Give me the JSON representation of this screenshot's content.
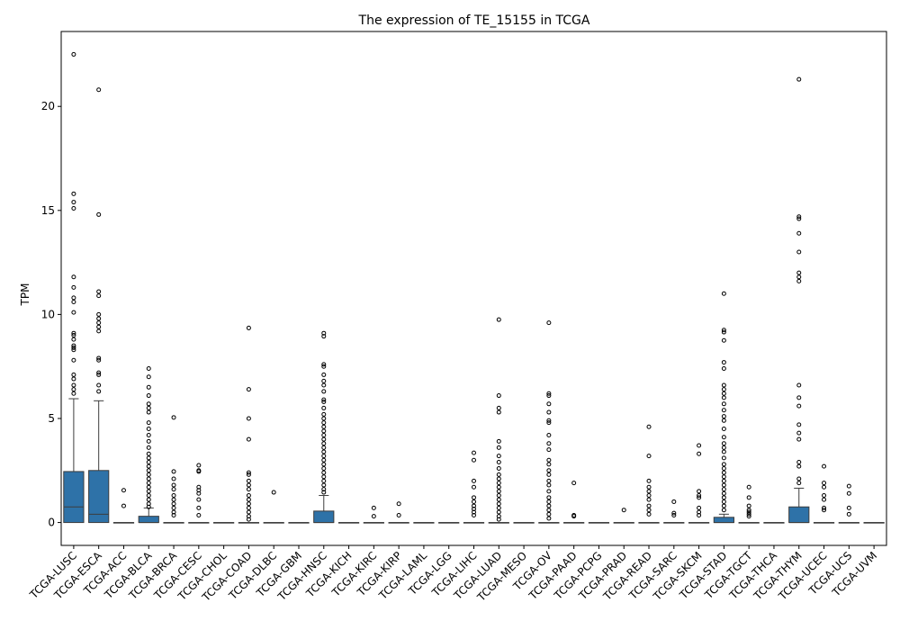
{
  "chart_data": {
    "type": "box",
    "title": "The expression of TE_15155 in TCGA",
    "xlabel": "",
    "ylabel": "TPM",
    "ylim": [
      -1.1,
      23.6
    ],
    "yticks": [
      0,
      5,
      10,
      15,
      20
    ],
    "box_color": "#2e72a8",
    "categories": [
      "TCGA-LUSC",
      "TCGA-ESCA",
      "TCGA-ACC",
      "TCGA-BLCA",
      "TCGA-BRCA",
      "TCGA-CESC",
      "TCGA-CHOL",
      "TCGA-COAD",
      "TCGA-DLBC",
      "TCGA-GBM",
      "TCGA-HNSC",
      "TCGA-KICH",
      "TCGA-KIRC",
      "TCGA-KIRP",
      "TCGA-LAML",
      "TCGA-LGG",
      "TCGA-LIHC",
      "TCGA-LUAD",
      "TCGA-MESO",
      "TCGA-OV",
      "TCGA-PAAD",
      "TCGA-PCPG",
      "TCGA-PRAD",
      "TCGA-READ",
      "TCGA-SARC",
      "TCGA-SKCM",
      "TCGA-STAD",
      "TCGA-TGCT",
      "TCGA-THCA",
      "TCGA-THYM",
      "TCGA-UCEC",
      "TCGA-UCS",
      "TCGA-UVM"
    ],
    "boxes": [
      {
        "q1": 0,
        "median": 0.75,
        "q3": 2.45,
        "whisker_low": 0,
        "whisker_high": 5.95,
        "outliers": [
          22.5,
          15.8,
          15.4,
          15.1,
          11.8,
          11.3,
          10.8,
          10.6,
          10.1,
          9.1,
          9.0,
          8.8,
          8.5,
          8.4,
          8.3,
          7.8,
          7.1,
          6.9,
          6.6,
          6.4,
          6.2
        ]
      },
      {
        "q1": 0,
        "median": 0.4,
        "q3": 2.5,
        "whisker_low": 0,
        "whisker_high": 5.85,
        "outliers": [
          20.8,
          14.8,
          11.1,
          10.9,
          10.0,
          9.8,
          9.6,
          9.4,
          9.2,
          7.9,
          7.8,
          7.2,
          7.1,
          6.6,
          6.3
        ]
      },
      {
        "q1": 0,
        "median": 0,
        "q3": 0,
        "whisker_low": 0,
        "whisker_high": 0,
        "outliers": [
          1.55,
          0.8
        ]
      },
      {
        "q1": 0,
        "median": 0,
        "q3": 0.3,
        "whisker_low": 0,
        "whisker_high": 0.7,
        "outliers": [
          7.4,
          7.0,
          6.5,
          6.1,
          5.7,
          5.5,
          5.3,
          4.8,
          4.5,
          4.2,
          3.9,
          3.6,
          3.3,
          3.1,
          2.9,
          2.7,
          2.5,
          2.3,
          2.1,
          1.9,
          1.7,
          1.5,
          1.3,
          1.1,
          0.9,
          0.75
        ]
      },
      {
        "q1": 0,
        "median": 0,
        "q3": 0,
        "whisker_low": 0,
        "whisker_high": 0,
        "outliers": [
          5.05,
          2.45,
          2.1,
          1.8,
          1.6,
          1.3,
          1.1,
          0.9,
          0.7,
          0.5,
          0.35
        ]
      },
      {
        "q1": 0,
        "median": 0,
        "q3": 0,
        "whisker_low": 0,
        "whisker_high": 0,
        "outliers": [
          2.75,
          2.5,
          2.45,
          1.7,
          1.55,
          1.4,
          1.1,
          0.7,
          0.35
        ]
      },
      {
        "q1": 0,
        "median": 0,
        "q3": 0,
        "whisker_low": 0,
        "whisker_high": 0,
        "outliers": []
      },
      {
        "q1": 0,
        "median": 0,
        "q3": 0,
        "whisker_low": 0,
        "whisker_high": 0,
        "outliers": [
          9.35,
          6.4,
          5.0,
          4.0,
          2.4,
          2.3,
          2.0,
          1.8,
          1.6,
          1.3,
          1.1,
          0.9,
          0.7,
          0.5,
          0.3,
          0.15
        ]
      },
      {
        "q1": 0,
        "median": 0,
        "q3": 0,
        "whisker_low": 0,
        "whisker_high": 0,
        "outliers": [
          1.45
        ]
      },
      {
        "q1": 0,
        "median": 0,
        "q3": 0,
        "whisker_low": 0,
        "whisker_high": 0,
        "outliers": []
      },
      {
        "q1": 0,
        "median": 0,
        "q3": 0.55,
        "whisker_low": 0,
        "whisker_high": 1.3,
        "outliers": [
          9.1,
          8.95,
          7.6,
          7.5,
          7.1,
          6.8,
          6.6,
          6.3,
          5.9,
          5.8,
          5.5,
          5.2,
          5.0,
          4.8,
          4.6,
          4.4,
          4.2,
          4.0,
          3.8,
          3.6,
          3.4,
          3.2,
          3.0,
          2.8,
          2.6,
          2.4,
          2.2,
          2.0,
          1.8,
          1.6,
          1.45
        ]
      },
      {
        "q1": 0,
        "median": 0,
        "q3": 0,
        "whisker_low": 0,
        "whisker_high": 0,
        "outliers": []
      },
      {
        "q1": 0,
        "median": 0,
        "q3": 0,
        "whisker_low": 0,
        "whisker_high": 0,
        "outliers": [
          0.7,
          0.3
        ]
      },
      {
        "q1": 0,
        "median": 0,
        "q3": 0,
        "whisker_low": 0,
        "whisker_high": 0,
        "outliers": [
          0.9,
          0.35
        ]
      },
      {
        "q1": 0,
        "median": 0,
        "q3": 0,
        "whisker_low": 0,
        "whisker_high": 0,
        "outliers": []
      },
      {
        "q1": 0,
        "median": 0,
        "q3": 0,
        "whisker_low": 0,
        "whisker_high": 0,
        "outliers": []
      },
      {
        "q1": 0,
        "median": 0,
        "q3": 0,
        "whisker_low": 0,
        "whisker_high": 0,
        "outliers": [
          3.35,
          3.0,
          2.0,
          1.7,
          1.2,
          1.0,
          0.8,
          0.65,
          0.5,
          0.35
        ]
      },
      {
        "q1": 0,
        "median": 0,
        "q3": 0,
        "whisker_low": 0,
        "whisker_high": 0,
        "outliers": [
          9.75,
          6.1,
          5.5,
          5.3,
          3.9,
          3.6,
          3.2,
          2.9,
          2.6,
          2.3,
          2.1,
          1.9,
          1.7,
          1.5,
          1.3,
          1.1,
          0.9,
          0.7,
          0.5,
          0.3,
          0.15
        ]
      },
      {
        "q1": 0,
        "median": 0,
        "q3": 0,
        "whisker_low": 0,
        "whisker_high": 0,
        "outliers": []
      },
      {
        "q1": 0,
        "median": 0,
        "q3": 0,
        "whisker_low": 0,
        "whisker_high": 0,
        "outliers": [
          9.6,
          6.2,
          6.1,
          5.7,
          5.3,
          4.9,
          4.8,
          4.2,
          3.8,
          3.5,
          3.0,
          2.8,
          2.5,
          2.3,
          2.0,
          1.8,
          1.5,
          1.2,
          1.0,
          0.8,
          0.6,
          0.4,
          0.2
        ]
      },
      {
        "q1": 0,
        "median": 0,
        "q3": 0,
        "whisker_low": 0,
        "whisker_high": 0,
        "outliers": [
          1.9,
          0.35,
          0.3
        ]
      },
      {
        "q1": 0,
        "median": 0,
        "q3": 0,
        "whisker_low": 0,
        "whisker_high": 0,
        "outliers": []
      },
      {
        "q1": 0,
        "median": 0,
        "q3": 0,
        "whisker_low": 0,
        "whisker_high": 0,
        "outliers": [
          0.6
        ]
      },
      {
        "q1": 0,
        "median": 0,
        "q3": 0,
        "whisker_low": 0,
        "whisker_high": 0,
        "outliers": [
          4.6,
          3.2,
          2.0,
          1.7,
          1.5,
          1.3,
          1.1,
          0.8,
          0.6,
          0.4
        ]
      },
      {
        "q1": 0,
        "median": 0,
        "q3": 0,
        "whisker_low": 0,
        "whisker_high": 0,
        "outliers": [
          1.0,
          0.45,
          0.35
        ]
      },
      {
        "q1": 0,
        "median": 0,
        "q3": 0,
        "whisker_low": 0,
        "whisker_high": 0,
        "outliers": [
          3.7,
          3.3,
          1.5,
          1.3,
          1.2,
          0.7,
          0.5,
          0.35
        ]
      },
      {
        "q1": 0,
        "median": 0,
        "q3": 0.25,
        "whisker_low": 0,
        "whisker_high": 0.4,
        "outliers": [
          11.0,
          9.25,
          9.15,
          8.75,
          7.7,
          7.4,
          6.6,
          6.4,
          6.2,
          6.0,
          5.7,
          5.4,
          5.1,
          4.9,
          4.5,
          4.1,
          3.8,
          3.6,
          3.4,
          3.1,
          2.8,
          2.6,
          2.4,
          2.2,
          2.0,
          1.8,
          1.6,
          1.4,
          1.2,
          1.0,
          0.8,
          0.6
        ]
      },
      {
        "q1": 0,
        "median": 0,
        "q3": 0,
        "whisker_low": 0,
        "whisker_high": 0,
        "outliers": [
          1.7,
          1.2,
          0.8,
          0.6,
          0.5,
          0.4,
          0.3
        ]
      },
      {
        "q1": 0,
        "median": 0,
        "q3": 0,
        "whisker_low": 0,
        "whisker_high": 0,
        "outliers": []
      },
      {
        "q1": 0,
        "median": 0,
        "q3": 0.75,
        "whisker_low": 0,
        "whisker_high": 1.65,
        "outliers": [
          21.3,
          14.7,
          14.6,
          13.9,
          13.0,
          12.0,
          11.8,
          11.6,
          6.6,
          6.0,
          5.6,
          4.7,
          4.3,
          4.0,
          2.9,
          2.7,
          2.1,
          1.9
        ]
      },
      {
        "q1": 0,
        "median": 0,
        "q3": 0,
        "whisker_low": 0,
        "whisker_high": 0,
        "outliers": [
          2.7,
          1.9,
          1.7,
          1.3,
          1.1,
          0.7,
          0.6
        ]
      },
      {
        "q1": 0,
        "median": 0,
        "q3": 0,
        "whisker_low": 0,
        "whisker_high": 0,
        "outliers": [
          1.75,
          1.4,
          0.7,
          0.4
        ]
      },
      {
        "q1": 0,
        "median": 0,
        "q3": 0,
        "whisker_low": 0,
        "whisker_high": 0,
        "outliers": []
      }
    ]
  }
}
